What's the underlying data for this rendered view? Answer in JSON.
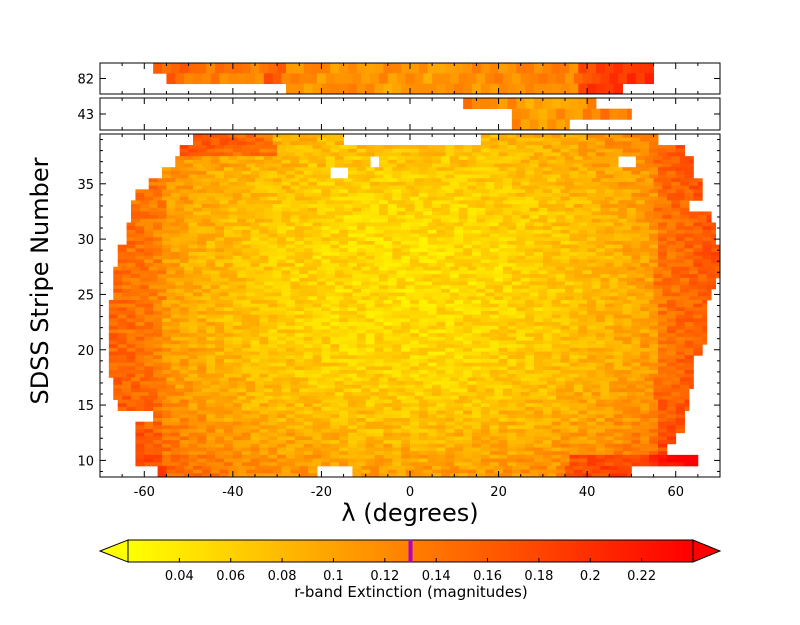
{
  "chart_data": {
    "type": "heatmap",
    "xlabel": "λ (degrees)",
    "ylabel": "SDSS Stripe Number",
    "xlim": [
      -70,
      70
    ],
    "x_ticks": [
      -60,
      -40,
      -20,
      0,
      20,
      40,
      60
    ],
    "panels": [
      {
        "name": "stripe-82",
        "y_ticks": [
          82
        ],
        "y_range": [
          81.5,
          82.5
        ],
        "rows": [
          {
            "stripe": 82,
            "segments": [
              [
                -58,
                55
              ],
              [
                -55,
                55
              ],
              [
                -28,
                48
              ]
            ]
          }
        ]
      },
      {
        "name": "stripe-43",
        "y_ticks": [
          43
        ],
        "y_range": [
          42.5,
          43.5
        ],
        "rows": [
          {
            "stripe": 43,
            "segments": [
              [
                12,
                42
              ],
              [
                23,
                50
              ],
              [
                23,
                36
              ]
            ]
          }
        ]
      },
      {
        "name": "main",
        "y_ticks": [
          10,
          15,
          20,
          25,
          30,
          35
        ],
        "y_range": [
          8.5,
          39.5
        ],
        "rows": [
          {
            "stripe": 39,
            "segments": [
              [
                -49,
                -15
              ],
              [
                16,
                56
              ]
            ]
          },
          {
            "stripe": 38,
            "segments": [
              [
                -52,
                62
              ]
            ]
          },
          {
            "stripe": 37,
            "segments": [
              [
                -53,
                64
              ]
            ]
          },
          {
            "stripe": 36,
            "segments": [
              [
                -56,
                64
              ]
            ]
          },
          {
            "stripe": 35,
            "segments": [
              [
                -59,
                66
              ]
            ]
          },
          {
            "stripe": 34,
            "segments": [
              [
                -62,
                66
              ]
            ]
          },
          {
            "stripe": 33,
            "segments": [
              [
                -63,
                63
              ]
            ]
          },
          {
            "stripe": 32,
            "segments": [
              [
                -63,
                68
              ]
            ]
          },
          {
            "stripe": 31,
            "segments": [
              [
                -64,
                69
              ]
            ]
          },
          {
            "stripe": 30,
            "segments": [
              [
                -64,
                69
              ]
            ]
          },
          {
            "stripe": 29,
            "segments": [
              [
                -66,
                70
              ]
            ]
          },
          {
            "stripe": 28,
            "segments": [
              [
                -66,
                70
              ]
            ]
          },
          {
            "stripe": 27,
            "segments": [
              [
                -67,
                70
              ]
            ]
          },
          {
            "stripe": 26,
            "segments": [
              [
                -67,
                69
              ]
            ]
          },
          {
            "stripe": 25,
            "segments": [
              [
                -67,
                68
              ]
            ]
          },
          {
            "stripe": 24,
            "segments": [
              [
                -68,
                67
              ]
            ]
          },
          {
            "stripe": 23,
            "segments": [
              [
                -68,
                67
              ]
            ]
          },
          {
            "stripe": 22,
            "segments": [
              [
                -68,
                67
              ]
            ]
          },
          {
            "stripe": 21,
            "segments": [
              [
                -68,
                67
              ]
            ]
          },
          {
            "stripe": 20,
            "segments": [
              [
                -68,
                66
              ]
            ]
          },
          {
            "stripe": 19,
            "segments": [
              [
                -68,
                64
              ]
            ]
          },
          {
            "stripe": 18,
            "segments": [
              [
                -68,
                64
              ]
            ]
          },
          {
            "stripe": 17,
            "segments": [
              [
                -67,
                64
              ]
            ]
          },
          {
            "stripe": 16,
            "segments": [
              [
                -67,
                63
              ]
            ]
          },
          {
            "stripe": 15,
            "segments": [
              [
                -66,
                63
              ]
            ]
          },
          {
            "stripe": 14,
            "segments": [
              [
                -58,
                62
              ]
            ]
          },
          {
            "stripe": 13,
            "segments": [
              [
                -62,
                62
              ]
            ]
          },
          {
            "stripe": 12,
            "segments": [
              [
                -62,
                60
              ]
            ]
          },
          {
            "stripe": 11,
            "segments": [
              [
                -62,
                58
              ]
            ]
          },
          {
            "stripe": 10,
            "segments": [
              [
                -62,
                65
              ]
            ]
          },
          {
            "stripe": 9,
            "segments": [
              [
                -57,
                -21
              ],
              [
                -13,
                50
              ]
            ]
          }
        ],
        "holes": [
          {
            "stripe": 36,
            "lambda": -17
          },
          {
            "stripe": 37,
            "lambda": -9
          },
          {
            "stripe": 37,
            "lambda": 48
          }
        ]
      }
    ],
    "colorbar": {
      "label": "r-band Extinction (magnitudes)",
      "colormap": "autumn_r",
      "colors": {
        "low": "#ffff00",
        "high": "#ff0000",
        "marker": "#b400c8"
      },
      "range": [
        0.02,
        0.24
      ],
      "ticks": [
        "0.04",
        "0.06",
        "0.08",
        "0.1",
        "0.12",
        "0.14",
        "0.16",
        "0.18",
        "0.2",
        "0.22"
      ],
      "tick_values": [
        0.04,
        0.06,
        0.08,
        0.1,
        0.12,
        0.14,
        0.16,
        0.18,
        0.2,
        0.22
      ],
      "extend": "both",
      "marker_value": 0.13
    }
  }
}
